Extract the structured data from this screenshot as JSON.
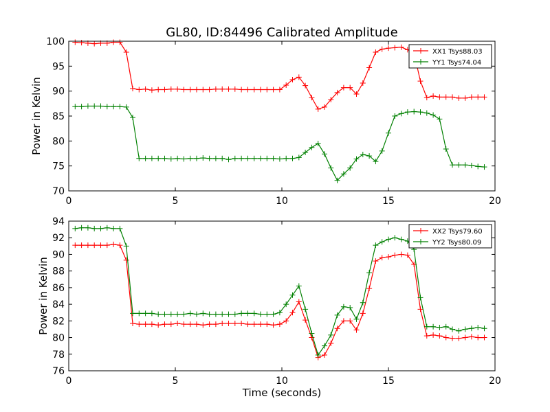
{
  "figure": {
    "title": "GL80, ID:84496 Calibrated Amplitude",
    "xlabel": "Time (seconds)"
  },
  "chart_data": [
    {
      "type": "line",
      "ylabel": "Power in Kelvin",
      "xlim": [
        0,
        20
      ],
      "ylim": [
        70,
        100
      ],
      "xticks": [
        "0",
        "5",
        "10",
        "15",
        "20"
      ],
      "yticks": [
        "70",
        "75",
        "80",
        "85",
        "90",
        "95",
        "100"
      ],
      "grid": false,
      "legend_position": "top-right",
      "x": [
        0.3,
        0.6,
        0.9,
        1.2,
        1.5,
        1.8,
        2.1,
        2.4,
        2.7,
        3.0,
        3.3,
        3.6,
        3.9,
        4.2,
        4.5,
        4.8,
        5.1,
        5.4,
        5.7,
        6.0,
        6.3,
        6.6,
        6.9,
        7.2,
        7.5,
        7.8,
        8.1,
        8.4,
        8.7,
        9.0,
        9.3,
        9.6,
        9.9,
        10.2,
        10.5,
        10.8,
        11.1,
        11.4,
        11.7,
        12.0,
        12.3,
        12.6,
        12.9,
        13.2,
        13.5,
        13.8,
        14.1,
        14.4,
        14.7,
        15.0,
        15.3,
        15.6,
        15.9,
        16.2,
        16.5,
        16.8,
        17.1,
        17.4,
        17.7,
        18.0,
        18.3,
        18.6,
        18.9,
        19.2,
        19.5
      ],
      "series": [
        {
          "name": "XX1 Tsys88.03",
          "color": "#ff0000",
          "values": [
            99.8,
            99.7,
            99.6,
            99.5,
            99.6,
            99.6,
            99.8,
            99.8,
            97.8,
            90.5,
            90.3,
            90.4,
            90.2,
            90.3,
            90.3,
            90.4,
            90.4,
            90.3,
            90.3,
            90.3,
            90.3,
            90.3,
            90.4,
            90.4,
            90.4,
            90.4,
            90.3,
            90.3,
            90.3,
            90.3,
            90.3,
            90.3,
            90.3,
            91.2,
            92.3,
            92.8,
            91.1,
            88.7,
            86.4,
            86.8,
            88.3,
            89.7,
            90.7,
            90.7,
            89.4,
            91.6,
            94.7,
            97.8,
            98.4,
            98.6,
            98.7,
            98.8,
            98.3,
            97.6,
            92.0,
            88.7,
            89.0,
            88.8,
            88.8,
            88.8,
            88.6,
            88.6,
            88.8,
            88.8,
            88.8
          ]
        },
        {
          "name": "YY1 Tsys74.04",
          "color": "#008000",
          "values": [
            86.9,
            86.9,
            87.0,
            87.0,
            87.0,
            86.9,
            86.9,
            86.9,
            86.8,
            84.7,
            76.5,
            76.5,
            76.5,
            76.5,
            76.5,
            76.4,
            76.5,
            76.4,
            76.5,
            76.5,
            76.6,
            76.5,
            76.5,
            76.5,
            76.3,
            76.5,
            76.5,
            76.5,
            76.5,
            76.5,
            76.5,
            76.5,
            76.4,
            76.5,
            76.5,
            76.7,
            77.7,
            78.7,
            79.5,
            77.4,
            74.6,
            72.1,
            73.4,
            74.6,
            76.4,
            77.3,
            77.0,
            75.9,
            78.0,
            81.6,
            85.0,
            85.5,
            85.8,
            85.9,
            85.8,
            85.6,
            85.2,
            84.4,
            78.4,
            75.2,
            75.2,
            75.2,
            75.1,
            74.9,
            74.8
          ]
        }
      ]
    },
    {
      "type": "line",
      "ylabel": "Power in Kelvin",
      "xlabel": "Time (seconds)",
      "xlim": [
        0,
        20
      ],
      "ylim": [
        76,
        94
      ],
      "xticks": [
        "0",
        "5",
        "10",
        "15",
        "20"
      ],
      "yticks": [
        "76",
        "78",
        "80",
        "82",
        "84",
        "86",
        "88",
        "90",
        "92",
        "94"
      ],
      "grid": false,
      "legend_position": "top-right",
      "x": [
        0.3,
        0.6,
        0.9,
        1.2,
        1.5,
        1.8,
        2.1,
        2.4,
        2.7,
        3.0,
        3.3,
        3.6,
        3.9,
        4.2,
        4.5,
        4.8,
        5.1,
        5.4,
        5.7,
        6.0,
        6.3,
        6.6,
        6.9,
        7.2,
        7.5,
        7.8,
        8.1,
        8.4,
        8.7,
        9.0,
        9.3,
        9.6,
        9.9,
        10.2,
        10.5,
        10.8,
        11.1,
        11.4,
        11.7,
        12.0,
        12.3,
        12.6,
        12.9,
        13.2,
        13.5,
        13.8,
        14.1,
        14.4,
        14.7,
        15.0,
        15.3,
        15.6,
        15.9,
        16.2,
        16.5,
        16.8,
        17.1,
        17.4,
        17.7,
        18.0,
        18.3,
        18.6,
        18.9,
        19.2,
        19.5
      ],
      "series": [
        {
          "name": "XX2 Tsys79.60",
          "color": "#ff0000",
          "values": [
            91.1,
            91.1,
            91.1,
            91.1,
            91.1,
            91.1,
            91.2,
            91.1,
            89.3,
            81.7,
            81.6,
            81.6,
            81.6,
            81.5,
            81.6,
            81.6,
            81.7,
            81.6,
            81.6,
            81.6,
            81.5,
            81.6,
            81.6,
            81.7,
            81.7,
            81.7,
            81.7,
            81.6,
            81.6,
            81.6,
            81.6,
            81.5,
            81.6,
            82.0,
            83.0,
            84.3,
            82.1,
            80.0,
            77.6,
            77.9,
            79.3,
            81.1,
            82.0,
            82.0,
            80.9,
            82.9,
            85.9,
            89.2,
            89.6,
            89.7,
            89.9,
            90.0,
            89.9,
            88.8,
            83.4,
            80.2,
            80.3,
            80.2,
            80.0,
            79.9,
            79.9,
            80.0,
            80.1,
            80.0,
            80.0
          ]
        },
        {
          "name": "YY2 Tsys80.09",
          "color": "#008000",
          "values": [
            93.1,
            93.2,
            93.2,
            93.1,
            93.1,
            93.2,
            93.1,
            93.1,
            91.0,
            82.9,
            82.9,
            82.9,
            82.9,
            82.8,
            82.8,
            82.8,
            82.8,
            82.8,
            82.9,
            82.8,
            82.9,
            82.8,
            82.8,
            82.8,
            82.8,
            82.8,
            82.9,
            82.9,
            82.9,
            82.8,
            82.8,
            82.8,
            83.0,
            84.0,
            85.1,
            86.2,
            83.4,
            80.5,
            77.9,
            79.0,
            80.3,
            82.7,
            83.7,
            83.6,
            82.2,
            84.2,
            87.8,
            91.1,
            91.5,
            91.8,
            92.0,
            91.8,
            91.6,
            90.6,
            84.8,
            81.3,
            81.3,
            81.2,
            81.3,
            81.0,
            80.8,
            81.0,
            81.1,
            81.2,
            81.1
          ]
        }
      ]
    }
  ]
}
